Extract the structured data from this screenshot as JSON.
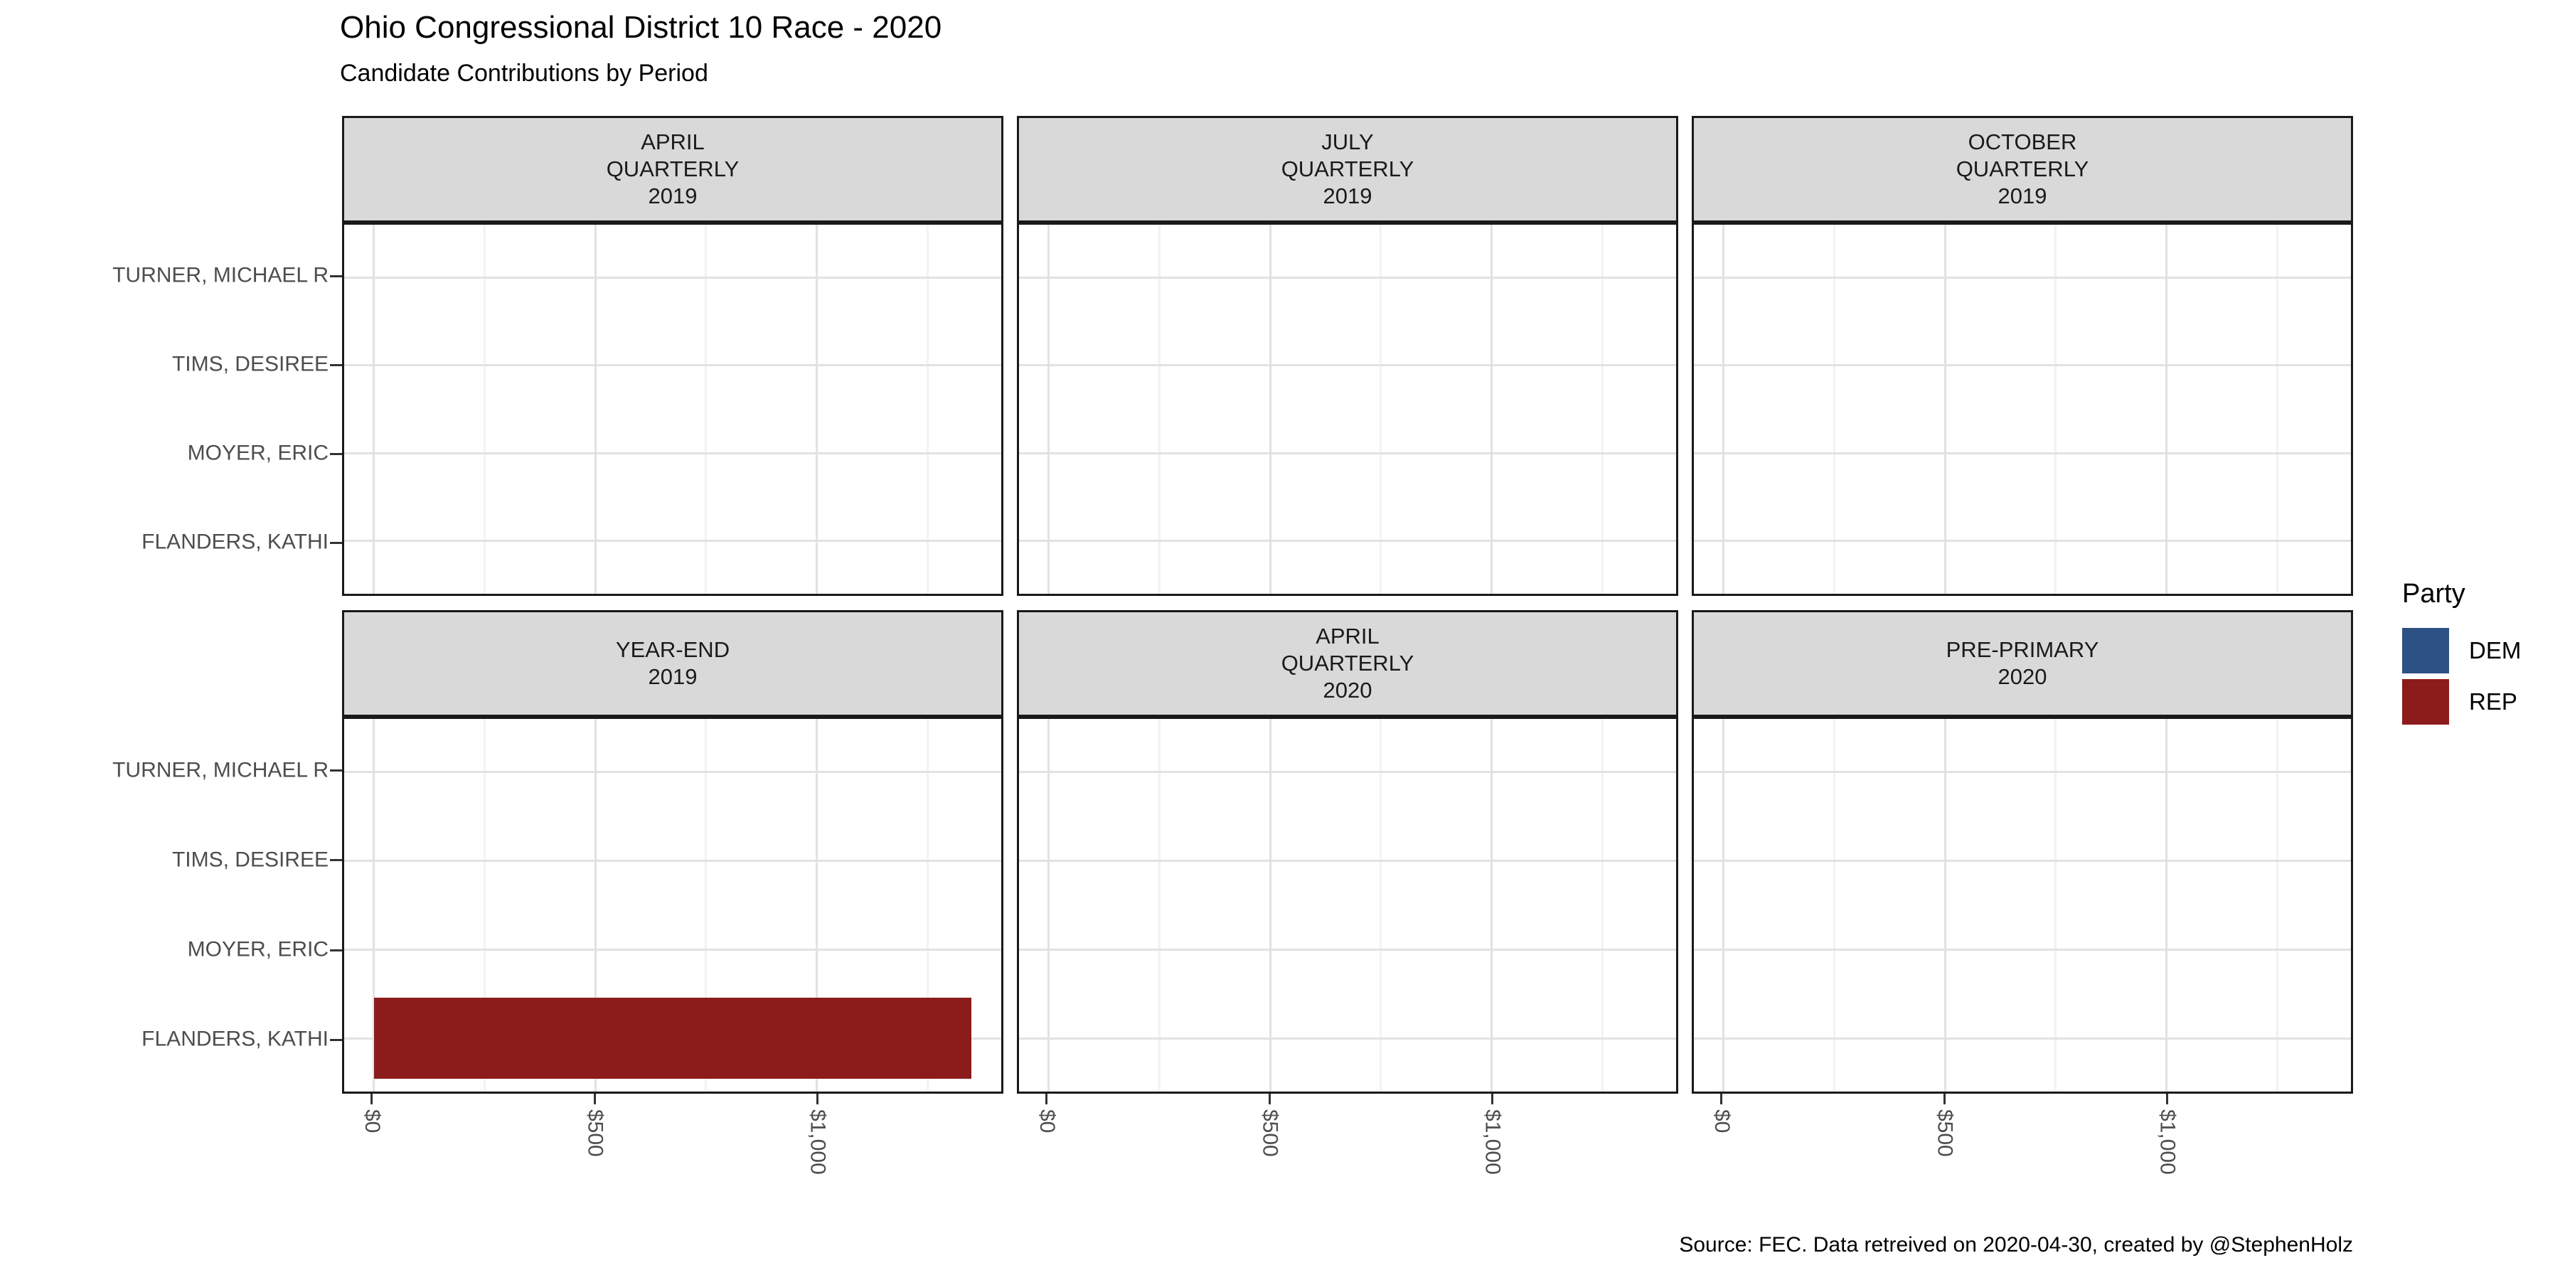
{
  "header": {
    "title": "Ohio Congressional District 10 Race - 2020",
    "subtitle": "Candidate Contributions by Period"
  },
  "caption": "Source: FEC. Data retreived on 2020-04-30, created by @StephenHolz",
  "legend": {
    "title": "Party",
    "entries": [
      {
        "label": "DEM",
        "color": "#2E5184"
      },
      {
        "label": "REP",
        "color": "#8C1B1B"
      }
    ]
  },
  "theme": {
    "strip_bg": "#D9D9D9",
    "panel_border": "#1A1A1A",
    "grid_major": "#E2E2E2",
    "grid_minor": "#F2F2F2",
    "axis_text": "#4D4D4D",
    "tick_color": "#333333",
    "background": "#FFFFFF"
  },
  "chart_data": {
    "type": "bar",
    "orientation": "horizontal",
    "title": "Ohio Congressional District 10 Race - 2020",
    "subtitle": "Candidate Contributions by Period",
    "facet_layout": {
      "rows": 2,
      "cols": 3
    },
    "legend_position": "right",
    "grid": true,
    "categories": [
      "TURNER, MICHAEL R",
      "TIMS, DESIREE",
      "MOYER, ERIC",
      "FLANDERS, KATHI"
    ],
    "x": {
      "label": "",
      "unit": "USD",
      "tick_values": [
        0,
        500,
        1000
      ],
      "tick_labels": [
        "$0",
        "$500",
        "$1,000"
      ],
      "minor_tick_values": [
        250,
        750,
        1250
      ],
      "domain": [
        -67,
        1417
      ],
      "tick_label_angle": -90
    },
    "facets": [
      {
        "label": "APRIL QUARTERLY 2019",
        "label_lines": [
          "APRIL",
          "QUARTERLY",
          "2019"
        ],
        "bars": []
      },
      {
        "label": "JULY QUARTERLY 2019",
        "label_lines": [
          "JULY",
          "QUARTERLY",
          "2019"
        ],
        "bars": []
      },
      {
        "label": "OCTOBER QUARTERLY 2019",
        "label_lines": [
          "OCTOBER",
          "QUARTERLY",
          "2019"
        ],
        "bars": []
      },
      {
        "label": "YEAR-END 2019",
        "label_lines": [
          "YEAR-END",
          "2019"
        ],
        "bars": [
          {
            "category": "FLANDERS, KATHI",
            "party": "REP",
            "value": 1350
          }
        ]
      },
      {
        "label": "APRIL QUARTERLY 2020",
        "label_lines": [
          "APRIL",
          "QUARTERLY",
          "2020"
        ],
        "bars": []
      },
      {
        "label": "PRE-PRIMARY 2020",
        "label_lines": [
          "PRE-PRIMARY",
          "2020"
        ],
        "bars": []
      }
    ]
  }
}
